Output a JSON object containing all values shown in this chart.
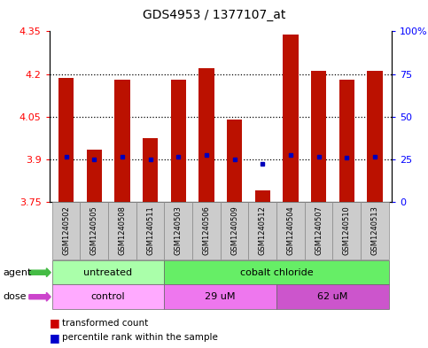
{
  "title": "GDS4953 / 1377107_at",
  "samples": [
    "GSM1240502",
    "GSM1240505",
    "GSM1240508",
    "GSM1240511",
    "GSM1240503",
    "GSM1240506",
    "GSM1240509",
    "GSM1240512",
    "GSM1240504",
    "GSM1240507",
    "GSM1240510",
    "GSM1240513"
  ],
  "bar_values": [
    4.185,
    3.935,
    4.18,
    3.975,
    4.18,
    4.22,
    4.04,
    3.79,
    4.34,
    4.21,
    4.18,
    4.21
  ],
  "dot_values": [
    3.91,
    3.9,
    3.91,
    3.9,
    3.91,
    3.915,
    3.9,
    3.885,
    3.915,
    3.91,
    3.905,
    3.91
  ],
  "ymin": 3.75,
  "ymax": 4.35,
  "yticks_left": [
    3.75,
    3.9,
    4.05,
    4.2,
    4.35
  ],
  "yticks_right": [
    0,
    25,
    50,
    75,
    100
  ],
  "bar_color": "#bb1100",
  "dot_color": "#0000bb",
  "dotted_line_values": [
    3.9,
    4.05,
    4.2
  ],
  "agent_groups": [
    {
      "label": "untreated",
      "start": 0,
      "end": 4,
      "color": "#aaffaa"
    },
    {
      "label": "cobalt chloride",
      "start": 4,
      "end": 12,
      "color": "#66ee66"
    }
  ],
  "dose_groups": [
    {
      "label": "control",
      "start": 0,
      "end": 4,
      "color": "#ffaaff"
    },
    {
      "label": "29 uM",
      "start": 4,
      "end": 8,
      "color": "#ee77ee"
    },
    {
      "label": "62 uM",
      "start": 8,
      "end": 12,
      "color": "#cc55cc"
    }
  ],
  "legend_bar_color": "#cc0000",
  "legend_dot_color": "#0000cc",
  "legend_bar_label": "transformed count",
  "legend_dot_label": "percentile rank within the sample",
  "sample_bg_color": "#cccccc",
  "bar_width": 0.55
}
